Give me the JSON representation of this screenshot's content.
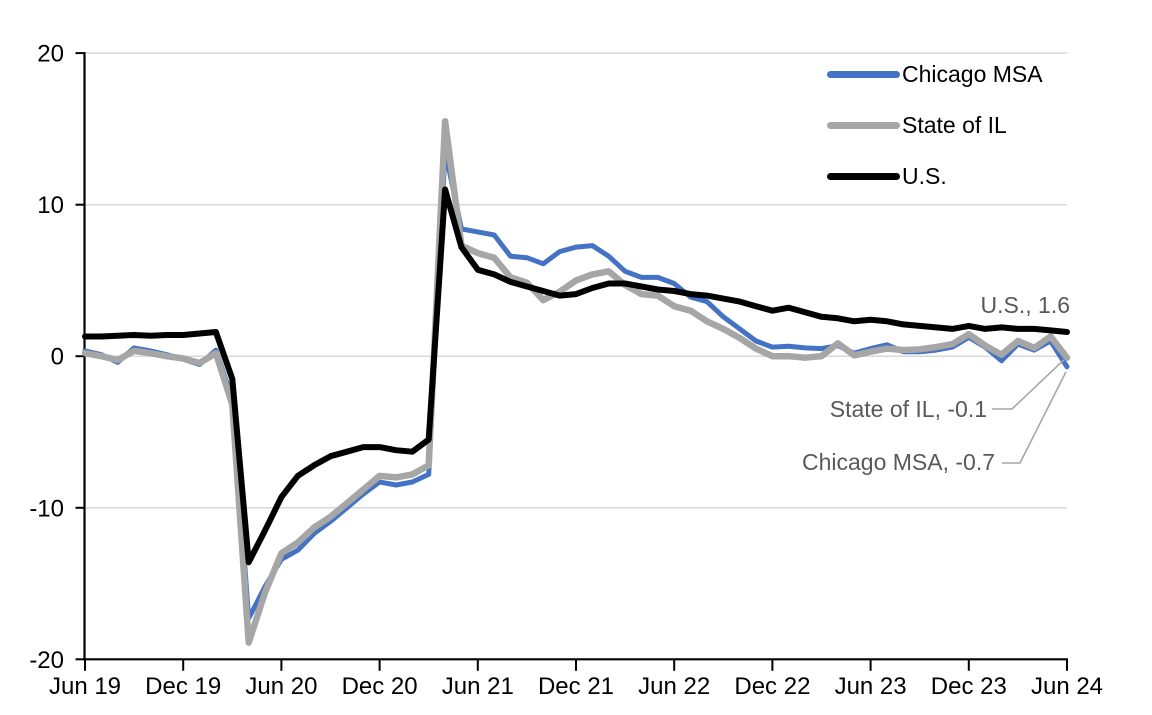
{
  "chart_data": {
    "type": "line",
    "title": "",
    "xlabel": "",
    "ylabel": "",
    "ylim": [
      -20,
      20
    ],
    "grid": "horizontal",
    "x": [
      "Jun-19",
      "Jul-19",
      "Aug-19",
      "Sep-19",
      "Oct-19",
      "Nov-19",
      "Dec-19",
      "Jan-20",
      "Feb-20",
      "Mar-20",
      "Apr-20",
      "May-20",
      "Jun-20",
      "Jul-20",
      "Aug-20",
      "Sep-20",
      "Oct-20",
      "Nov-20",
      "Dec-20",
      "Jan-21",
      "Feb-21",
      "Mar-21",
      "Apr-21",
      "May-21",
      "Jun-21",
      "Jul-21",
      "Aug-21",
      "Sep-21",
      "Oct-21",
      "Nov-21",
      "Dec-21",
      "Jan-22",
      "Feb-22",
      "Mar-22",
      "Apr-22",
      "May-22",
      "Jun-22",
      "Jul-22",
      "Aug-22",
      "Sep-22",
      "Oct-22",
      "Nov-22",
      "Dec-22",
      "Jan-23",
      "Feb-23",
      "Mar-23",
      "Apr-23",
      "May-23",
      "Jun-23",
      "Jul-23",
      "Aug-23",
      "Sep-23",
      "Oct-23",
      "Nov-23",
      "Dec-23",
      "Jan-24",
      "Feb-24",
      "Mar-24",
      "Apr-24",
      "May-24",
      "Jun-24"
    ],
    "axes": {
      "x_tick_labels": [
        "Jun 19",
        "Dec 19",
        "Jun 20",
        "Dec 20",
        "Jun 21",
        "Dec 21",
        "Jun 22",
        "Dec 22",
        "Jun 23",
        "Dec 23",
        "Jun 24"
      ],
      "y_ticks": [
        20,
        10,
        0,
        -10,
        -20
      ],
      "y_gridlines": [
        20,
        10,
        0,
        -10
      ]
    },
    "colors": {
      "gridline": "#D9D9D9",
      "axis": "#000000",
      "annotation_text": "#595959",
      "leader_line": "#A6A6A6"
    },
    "legend": {
      "position": "top-right-inside",
      "entries": [
        "Chicago MSA",
        "State of IL",
        "U.S."
      ]
    },
    "series": [
      {
        "name": "Chicago MSA",
        "color": "#4472C4",
        "values": [
          0.35,
          0.1,
          -0.4,
          0.55,
          0.35,
          0.1,
          -0.2,
          -0.55,
          0.4,
          -2.8,
          -17.3,
          -15.2,
          -13.4,
          -12.8,
          -11.7,
          -10.9,
          -10.0,
          -9.1,
          -8.3,
          -8.5,
          -8.3,
          -7.8,
          13.6,
          8.4,
          8.2,
          8.0,
          6.6,
          6.5,
          6.1,
          6.9,
          7.2,
          7.3,
          6.6,
          5.6,
          5.2,
          5.2,
          4.8,
          3.9,
          3.6,
          2.6,
          1.8,
          1.0,
          0.6,
          0.65,
          0.55,
          0.5,
          0.7,
          0.2,
          0.5,
          0.75,
          0.3,
          0.3,
          0.4,
          0.6,
          1.25,
          0.6,
          -0.3,
          0.8,
          0.4,
          1.0,
          -0.7
        ]
      },
      {
        "name": "State of IL",
        "color": "#A6A6A6",
        "values": [
          0.2,
          0.0,
          -0.25,
          0.35,
          0.2,
          0.0,
          -0.15,
          -0.45,
          0.2,
          -3.2,
          -18.9,
          -15.6,
          -13.0,
          -12.3,
          -11.3,
          -10.6,
          -9.7,
          -8.8,
          -7.9,
          -8.0,
          -7.8,
          -7.2,
          15.5,
          7.3,
          6.8,
          6.5,
          5.2,
          4.85,
          3.7,
          4.25,
          5.0,
          5.4,
          5.6,
          4.7,
          4.1,
          4.0,
          3.3,
          3.0,
          2.3,
          1.8,
          1.2,
          0.5,
          0.0,
          0.0,
          -0.1,
          0.0,
          0.85,
          0.05,
          0.3,
          0.5,
          0.4,
          0.45,
          0.6,
          0.8,
          1.45,
          0.7,
          0.1,
          1.0,
          0.55,
          1.3,
          -0.1
        ]
      },
      {
        "name": "U.S.",
        "color": "#000000",
        "values": [
          1.3,
          1.3,
          1.35,
          1.4,
          1.35,
          1.4,
          1.4,
          1.5,
          1.6,
          -1.5,
          -13.6,
          -11.5,
          -9.3,
          -7.9,
          -7.2,
          -6.6,
          -6.3,
          -6.0,
          -6.0,
          -6.2,
          -6.3,
          -5.5,
          11.0,
          7.2,
          5.7,
          5.4,
          4.9,
          4.6,
          4.3,
          4.0,
          4.1,
          4.5,
          4.8,
          4.8,
          4.6,
          4.4,
          4.3,
          4.1,
          4.0,
          3.8,
          3.6,
          3.3,
          3.0,
          3.2,
          2.9,
          2.6,
          2.5,
          2.3,
          2.4,
          2.3,
          2.1,
          2.0,
          1.9,
          1.8,
          2.0,
          1.8,
          1.9,
          1.8,
          1.8,
          1.7,
          1.6
        ]
      }
    ],
    "annotations": [
      {
        "label": "U.S., 1.6",
        "series": "U.S.",
        "value": 1.6
      },
      {
        "label": "State of IL, -0.1",
        "series": "State of IL",
        "value": -0.1
      },
      {
        "label": "Chicago MSA, -0.7",
        "series": "Chicago MSA",
        "value": -0.7
      }
    ]
  }
}
